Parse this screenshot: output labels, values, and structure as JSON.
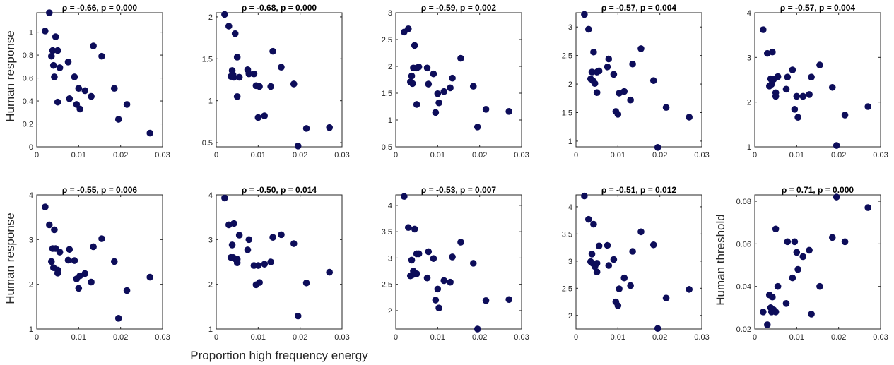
{
  "figure": {
    "xlabel": "Proportion high frequency energy",
    "row_ylabels": [
      "Human response",
      "Human response"
    ],
    "last_panel_ylabel": "Human threshold"
  },
  "chart_data": [
    {
      "type": "scatter",
      "title": "ρ = -0.66, p = 0.000",
      "ylabel": "Human response",
      "xlim": [
        0,
        0.03
      ],
      "ylim": [
        0,
        1.17
      ],
      "xticks": [
        "0",
        "0.01",
        "0.02",
        "0.03"
      ],
      "yticks": [
        "0",
        "0.2",
        "0.4",
        "0.6",
        "0.8",
        "1"
      ],
      "ytick_values": [
        0,
        0.2,
        0.4,
        0.6,
        0.8,
        1
      ],
      "marker_color": "#0d0d5a",
      "x": [
        0.002,
        0.003,
        0.0035,
        0.0038,
        0.004,
        0.0042,
        0.0045,
        0.005,
        0.005,
        0.0055,
        0.0075,
        0.0078,
        0.009,
        0.0095,
        0.01,
        0.0103,
        0.0115,
        0.013,
        0.0135,
        0.0155,
        0.0185,
        0.0195,
        0.0215,
        0.027
      ],
      "y": [
        1.01,
        1.17,
        0.79,
        0.84,
        0.71,
        0.61,
        0.96,
        0.84,
        0.39,
        0.69,
        0.74,
        0.42,
        0.61,
        0.37,
        0.51,
        0.33,
        0.49,
        0.44,
        0.88,
        0.79,
        0.51,
        0.24,
        0.37,
        0.12
      ]
    },
    {
      "type": "scatter",
      "title": "ρ = -0.68, p = 0.000",
      "xlim": [
        0,
        0.03
      ],
      "ylim": [
        0.45,
        2.05
      ],
      "xticks": [
        "0",
        "0.01",
        "0.02",
        "0.03"
      ],
      "yticks": [
        "0.5",
        "1",
        "1.5",
        "2"
      ],
      "ytick_values": [
        0.5,
        1,
        1.5,
        2
      ],
      "marker_color": "#0d0d5a",
      "x": [
        0.002,
        0.003,
        0.0035,
        0.0038,
        0.004,
        0.0042,
        0.0045,
        0.005,
        0.005,
        0.0055,
        0.0075,
        0.0078,
        0.009,
        0.0095,
        0.01,
        0.0103,
        0.0115,
        0.013,
        0.0135,
        0.0155,
        0.0185,
        0.0195,
        0.0215,
        0.027
      ],
      "y": [
        2.03,
        1.89,
        1.29,
        1.36,
        1.31,
        1.28,
        1.8,
        1.52,
        1.05,
        1.28,
        1.37,
        1.32,
        1.32,
        1.18,
        0.8,
        1.17,
        0.82,
        1.17,
        1.59,
        1.4,
        1.2,
        0.46,
        0.67,
        0.68
      ]
    },
    {
      "type": "scatter",
      "title": "ρ = -0.59, p = 0.002",
      "xlim": [
        0,
        0.03
      ],
      "ylim": [
        0.5,
        3.0
      ],
      "xticks": [
        "0",
        "0.01",
        "0.02",
        "0.03"
      ],
      "yticks": [
        "0.5",
        "1",
        "1.5",
        "2",
        "2.5",
        "3"
      ],
      "ytick_values": [
        0.5,
        1,
        1.5,
        2,
        2.5,
        3
      ],
      "marker_color": "#0d0d5a",
      "x": [
        0.002,
        0.003,
        0.0035,
        0.0038,
        0.004,
        0.0042,
        0.0045,
        0.005,
        0.005,
        0.0055,
        0.0075,
        0.0078,
        0.009,
        0.0095,
        0.01,
        0.0103,
        0.0115,
        0.013,
        0.0135,
        0.0155,
        0.0185,
        0.0195,
        0.0215,
        0.027
      ],
      "y": [
        2.64,
        2.7,
        1.71,
        1.82,
        1.68,
        1.97,
        2.39,
        1.97,
        1.29,
        1.99,
        1.97,
        1.67,
        1.86,
        1.14,
        1.49,
        1.32,
        1.53,
        1.6,
        1.78,
        2.15,
        1.63,
        0.87,
        1.2,
        1.16
      ]
    },
    {
      "type": "scatter",
      "title": "ρ = -0.57, p = 0.004",
      "xlim": [
        0,
        0.03
      ],
      "ylim": [
        0.9,
        3.25
      ],
      "xticks": [
        "0",
        "0.01",
        "0.02",
        "0.03"
      ],
      "yticks": [
        "1",
        "1.5",
        "2",
        "2.5",
        "3"
      ],
      "ytick_values": [
        1,
        1.5,
        2,
        2.5,
        3
      ],
      "marker_color": "#0d0d5a",
      "x": [
        0.002,
        0.003,
        0.0035,
        0.0038,
        0.004,
        0.0042,
        0.0045,
        0.005,
        0.005,
        0.0055,
        0.0075,
        0.0078,
        0.009,
        0.0095,
        0.01,
        0.0103,
        0.0115,
        0.013,
        0.0135,
        0.0155,
        0.0185,
        0.0195,
        0.0215,
        0.027
      ],
      "y": [
        3.22,
        2.96,
        2.09,
        2.21,
        2.06,
        2.56,
        2.01,
        2.21,
        1.85,
        2.23,
        2.3,
        2.44,
        2.17,
        1.52,
        1.47,
        1.84,
        1.87,
        1.72,
        2.35,
        2.62,
        2.06,
        0.89,
        1.59,
        1.42
      ]
    },
    {
      "type": "scatter",
      "title": "ρ = -0.57, p = 0.004",
      "xlim": [
        0,
        0.03
      ],
      "ylim": [
        1,
        4
      ],
      "xticks": [
        "0",
        "0.01",
        "0.02",
        "0.03"
      ],
      "yticks": [
        "1",
        "2",
        "3",
        "4"
      ],
      "ytick_values": [
        1,
        2,
        3,
        4
      ],
      "marker_color": "#0d0d5a",
      "x": [
        0.002,
        0.003,
        0.0035,
        0.0038,
        0.004,
        0.0042,
        0.0045,
        0.005,
        0.005,
        0.0055,
        0.0075,
        0.0078,
        0.009,
        0.0095,
        0.01,
        0.0103,
        0.0115,
        0.013,
        0.0135,
        0.0155,
        0.0185,
        0.0195,
        0.0215,
        0.027
      ],
      "y": [
        3.62,
        3.09,
        2.36,
        2.52,
        2.4,
        3.12,
        2.51,
        2.21,
        2.13,
        2.57,
        2.29,
        2.56,
        2.72,
        1.84,
        2.13,
        1.66,
        2.13,
        2.17,
        2.56,
        2.83,
        2.33,
        1.03,
        1.71,
        1.9
      ]
    },
    {
      "type": "scatter",
      "title": "ρ = -0.55, p = 0.006",
      "ylabel": "Human response",
      "xlim": [
        0,
        0.03
      ],
      "ylim": [
        1,
        4
      ],
      "xticks": [
        "0",
        "0.01",
        "0.02",
        "0.03"
      ],
      "yticks": [
        "1",
        "2",
        "3",
        "4"
      ],
      "ytick_values": [
        1,
        2,
        3,
        4
      ],
      "marker_color": "#0d0d5a",
      "x": [
        0.002,
        0.003,
        0.0035,
        0.0038,
        0.004,
        0.0042,
        0.0045,
        0.005,
        0.005,
        0.0055,
        0.0075,
        0.0078,
        0.009,
        0.0095,
        0.01,
        0.0103,
        0.0115,
        0.013,
        0.0135,
        0.0155,
        0.0185,
        0.0195,
        0.0215,
        0.027
      ],
      "y": [
        3.73,
        3.33,
        2.51,
        2.8,
        2.37,
        3.22,
        2.8,
        2.32,
        2.25,
        2.72,
        2.54,
        2.78,
        2.53,
        2.12,
        1.91,
        2.19,
        2.24,
        2.05,
        2.84,
        3.02,
        2.51,
        1.24,
        1.86,
        2.16
      ]
    },
    {
      "type": "scatter",
      "title": "ρ = -0.50, p = 0.014",
      "xlim": [
        0,
        0.03
      ],
      "ylim": [
        1,
        4
      ],
      "xticks": [
        "0",
        "0.01",
        "0.02",
        "0.03"
      ],
      "yticks": [
        "1",
        "2",
        "3",
        "4"
      ],
      "ytick_values": [
        1,
        2,
        3,
        4
      ],
      "marker_color": "#0d0d5a",
      "x": [
        0.002,
        0.003,
        0.0035,
        0.0038,
        0.004,
        0.0042,
        0.0045,
        0.005,
        0.005,
        0.0055,
        0.0075,
        0.0078,
        0.009,
        0.0095,
        0.01,
        0.0103,
        0.0115,
        0.013,
        0.0135,
        0.0155,
        0.0185,
        0.0195,
        0.0215,
        0.027
      ],
      "y": [
        3.93,
        3.33,
        2.6,
        2.88,
        2.6,
        3.36,
        2.57,
        2.48,
        2.56,
        3.1,
        2.77,
        3.0,
        2.42,
        1.99,
        2.42,
        2.04,
        2.45,
        2.5,
        3.05,
        3.11,
        2.91,
        1.29,
        2.03,
        2.27
      ]
    },
    {
      "type": "scatter",
      "title": "ρ = -0.53, p = 0.007",
      "xlim": [
        0,
        0.03
      ],
      "ylim": [
        1.65,
        4.2
      ],
      "xticks": [
        "0",
        "0.01",
        "0.02",
        "0.03"
      ],
      "yticks": [
        "2",
        "2.5",
        "3",
        "3.5",
        "4"
      ],
      "ytick_values": [
        2,
        2.5,
        3,
        3.5,
        4
      ],
      "marker_color": "#0d0d5a",
      "x": [
        0.002,
        0.003,
        0.0035,
        0.0038,
        0.004,
        0.0042,
        0.0045,
        0.005,
        0.005,
        0.0055,
        0.0075,
        0.0078,
        0.009,
        0.0095,
        0.01,
        0.0103,
        0.0115,
        0.013,
        0.0135,
        0.0155,
        0.0185,
        0.0195,
        0.0215,
        0.027
      ],
      "y": [
        4.17,
        3.58,
        2.66,
        2.96,
        2.68,
        2.75,
        3.55,
        2.7,
        3.08,
        3.08,
        2.62,
        3.12,
        2.99,
        2.2,
        2.41,
        2.05,
        2.57,
        2.54,
        3.02,
        3.3,
        2.9,
        1.65,
        2.19,
        2.21
      ]
    },
    {
      "type": "scatter",
      "title": "ρ = -0.51, p = 0.012",
      "xlim": [
        0,
        0.03
      ],
      "ylim": [
        1.75,
        4.22
      ],
      "xticks": [
        "0",
        "0.01",
        "0.02",
        "0.03"
      ],
      "yticks": [
        "2",
        "2.5",
        "3",
        "3.5",
        "4"
      ],
      "ytick_values": [
        2,
        2.5,
        3,
        3.5,
        4
      ],
      "marker_color": "#0d0d5a",
      "x": [
        0.002,
        0.003,
        0.0035,
        0.0038,
        0.004,
        0.0042,
        0.0045,
        0.005,
        0.005,
        0.0055,
        0.0075,
        0.0078,
        0.009,
        0.0095,
        0.01,
        0.0103,
        0.0115,
        0.013,
        0.0135,
        0.0155,
        0.0185,
        0.0195,
        0.0215,
        0.027
      ],
      "y": [
        4.2,
        3.77,
        2.99,
        3.13,
        2.96,
        3.68,
        2.9,
        2.8,
        2.96,
        3.28,
        3.29,
        2.92,
        3.03,
        2.25,
        2.18,
        2.49,
        2.69,
        2.55,
        3.18,
        3.54,
        3.3,
        1.76,
        2.32,
        2.48
      ]
    },
    {
      "type": "scatter",
      "title": "ρ = 0.71, p = 0.000",
      "ylabel": "Human threshold",
      "xlim": [
        0,
        0.03
      ],
      "ylim": [
        0.02,
        0.083
      ],
      "xticks": [
        "0",
        "0.01",
        "0.02",
        "0.03"
      ],
      "yticks": [
        "0.02",
        "0.04",
        "0.06",
        "0.08"
      ],
      "ytick_values": [
        0.02,
        0.04,
        0.06,
        0.08
      ],
      "marker_color": "#0d0d5a",
      "x": [
        0.002,
        0.003,
        0.0035,
        0.0038,
        0.004,
        0.0042,
        0.0045,
        0.005,
        0.005,
        0.0055,
        0.0075,
        0.0078,
        0.009,
        0.0095,
        0.01,
        0.0103,
        0.0115,
        0.013,
        0.0135,
        0.0155,
        0.0185,
        0.0195,
        0.0215,
        0.027
      ],
      "y": [
        0.028,
        0.022,
        0.036,
        0.03,
        0.028,
        0.035,
        0.029,
        0.067,
        0.028,
        0.04,
        0.032,
        0.061,
        0.044,
        0.061,
        0.056,
        0.048,
        0.054,
        0.057,
        0.027,
        0.04,
        0.063,
        0.082,
        0.061,
        0.077
      ]
    }
  ]
}
